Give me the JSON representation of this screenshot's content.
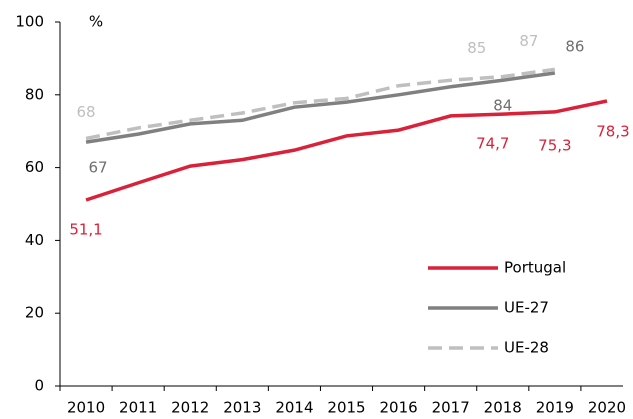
{
  "chart_data": {
    "type": "line",
    "y_label": "%",
    "categories": [
      "2010",
      "2011",
      "2012",
      "2013",
      "2014",
      "2015",
      "2016",
      "2017",
      "2018",
      "2019",
      "2020"
    ],
    "ylim": [
      0,
      100
    ],
    "yticks": [
      0,
      20,
      40,
      60,
      80,
      100
    ],
    "grid": false,
    "legend": "lower right",
    "series": [
      {
        "name": "Portugal",
        "color": "#d9213a",
        "dash": false,
        "values": [
          51.1,
          55.8,
          60.4,
          62.2,
          64.8,
          68.7,
          70.3,
          74.2,
          74.7,
          75.3,
          78.3
        ],
        "value_labels": [
          "51,1",
          null,
          null,
          null,
          null,
          null,
          null,
          null,
          "74,7",
          "75,3",
          "78,3"
        ]
      },
      {
        "name": "UE-27",
        "color": "#808080",
        "dash": false,
        "values": [
          67,
          69.2,
          72,
          73,
          76.6,
          78,
          80,
          82.2,
          84,
          86,
          null
        ],
        "value_labels": [
          "67",
          null,
          null,
          null,
          null,
          null,
          null,
          null,
          "84",
          "86",
          null
        ]
      },
      {
        "name": "UE-28",
        "color": "#bfbfbf",
        "dash": true,
        "values": [
          68,
          70.9,
          73,
          75,
          77.8,
          79,
          82.5,
          84,
          85,
          87,
          null
        ],
        "value_labels": [
          "68",
          null,
          null,
          null,
          null,
          null,
          null,
          null,
          "85",
          "87",
          null
        ]
      }
    ]
  }
}
